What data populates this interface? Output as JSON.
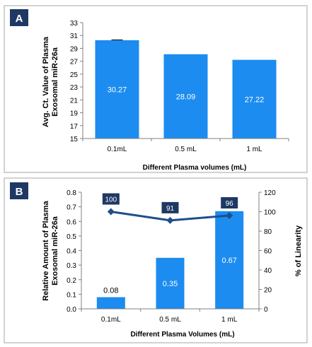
{
  "chart_data": [
    {
      "panel_label": "A",
      "type": "bar",
      "categories": [
        "0.1mL",
        "0.5 mL",
        "1 mL"
      ],
      "values": [
        30.27,
        28.09,
        27.22
      ],
      "value_labels": [
        "30.27",
        "28.09",
        "27.22"
      ],
      "error_bars": [
        0.05,
        0,
        0
      ],
      "xlabel": "Different Plasma volumes (mL)",
      "ylabel_lines": [
        "Avg. Ct. Value of Plasma",
        "Exosomal miR-26a"
      ],
      "ylim": [
        15,
        33
      ],
      "yticks": [
        "15",
        "17",
        "19",
        "21",
        "23",
        "25",
        "27",
        "29",
        "31",
        "33"
      ],
      "grid": false,
      "bar_color": "#1C8CF0"
    },
    {
      "panel_label": "B",
      "type": "bar+line",
      "categories": [
        "0.1mL",
        "0.5 mL",
        "1 mL"
      ],
      "series": [
        {
          "type": "bar",
          "axis": "left",
          "values": [
            0.08,
            0.35,
            0.67
          ],
          "value_labels": [
            "0.08",
            "0.35",
            "0.67"
          ],
          "color": "#1C8CF0"
        },
        {
          "type": "line",
          "axis": "right",
          "values": [
            100,
            91,
            96
          ],
          "value_labels": [
            "100",
            "91",
            "96"
          ],
          "color": "#1F4E8C",
          "marker": "diamond"
        }
      ],
      "xlabel": "Different Plasma Volumes (mL)",
      "ylabel_lines": [
        "Relative Amount of Plasma",
        "Exosomal miR-26a"
      ],
      "y2label": "% of Linearity",
      "ylim": [
        0,
        0.8
      ],
      "yticks": [
        "0.0",
        "0.1",
        "0.2",
        "0.3",
        "0.4",
        "0.5",
        "0.6",
        "0.7",
        "0.8"
      ],
      "y2lim": [
        0,
        120
      ],
      "y2ticks": [
        "0",
        "20",
        "40",
        "60",
        "80",
        "100",
        "120"
      ],
      "grid": false
    }
  ],
  "colors": {
    "panel_badge": "#1F3864",
    "panel_border": "#A6A6A6",
    "axis": "#808080"
  }
}
